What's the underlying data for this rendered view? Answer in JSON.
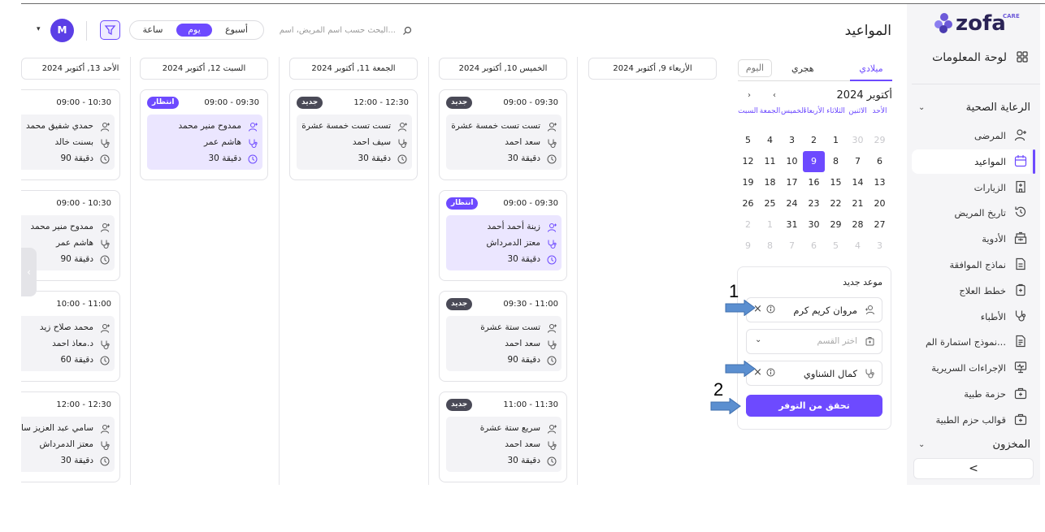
{
  "app": {
    "logo_text": "zofa",
    "logo_sub": "CARE",
    "dashboard_label": "لوحة المعلومات"
  },
  "sidebar": {
    "section_health": "الرعاية الصحية",
    "items": [
      {
        "label": "المرضى",
        "icon": "user-plus-icon"
      },
      {
        "label": "المواعيد",
        "icon": "calendar-icon",
        "active": true
      },
      {
        "label": "الزيارات",
        "icon": "hospital-icon"
      },
      {
        "label": "تاريخ المريض",
        "icon": "history-icon"
      },
      {
        "label": "الأدوية",
        "icon": "pharmacy-icon"
      },
      {
        "label": "نماذج الموافقة",
        "icon": "document-icon"
      },
      {
        "label": "خطط العلاج",
        "icon": "clipboard-icon"
      },
      {
        "label": "الأطباء",
        "icon": "stethoscope-icon"
      },
      {
        "label": "نموذج استمارة الم...",
        "icon": "form-icon"
      },
      {
        "label": "الإجراءات السريرية",
        "icon": "monitor-icon"
      },
      {
        "label": "حزمة طبية",
        "icon": "medkit-icon"
      },
      {
        "label": "قوالب حزم الطبية",
        "icon": "medkit-icon"
      }
    ],
    "section_store": "المخزون",
    "collapse_glyph": "<"
  },
  "header": {
    "title": "المواعيد",
    "search_placeholder": "البحث حسب اسم المريض، اسم...",
    "view_week": "أسبوع",
    "view_day": "يوم",
    "view_hour": "ساعة",
    "view_selected": "يوم",
    "avatar_initial": "M"
  },
  "calendar": {
    "tabs": {
      "gregorian": "ميلادي",
      "hijri": "هجري",
      "today": "اليوم"
    },
    "month_label": "أكتوبر 2024",
    "weekdays": [
      "الأحد",
      "الاثنين",
      "الثلاثاء",
      "الأربعاء",
      "الخميس",
      "الجمعة",
      "السبت"
    ],
    "weeks": [
      [
        {
          "d": "29",
          "dim": true
        },
        {
          "d": "30",
          "dim": true
        },
        {
          "d": "1"
        },
        {
          "d": "2"
        },
        {
          "d": "3"
        },
        {
          "d": "4"
        },
        {
          "d": "5"
        }
      ],
      [
        {
          "d": "6"
        },
        {
          "d": "7"
        },
        {
          "d": "8"
        },
        {
          "d": "9",
          "sel": true
        },
        {
          "d": "10"
        },
        {
          "d": "11"
        },
        {
          "d": "12"
        }
      ],
      [
        {
          "d": "13"
        },
        {
          "d": "14"
        },
        {
          "d": "15"
        },
        {
          "d": "16"
        },
        {
          "d": "17"
        },
        {
          "d": "18"
        },
        {
          "d": "19"
        }
      ],
      [
        {
          "d": "20"
        },
        {
          "d": "21"
        },
        {
          "d": "22"
        },
        {
          "d": "23"
        },
        {
          "d": "24"
        },
        {
          "d": "25"
        },
        {
          "d": "26"
        }
      ],
      [
        {
          "d": "27"
        },
        {
          "d": "28"
        },
        {
          "d": "29"
        },
        {
          "d": "30"
        },
        {
          "d": "31"
        },
        {
          "d": "1",
          "dim": true
        },
        {
          "d": "2",
          "dim": true
        }
      ],
      [
        {
          "d": "3",
          "dim": true
        },
        {
          "d": "4",
          "dim": true
        },
        {
          "d": "5",
          "dim": true
        },
        {
          "d": "6",
          "dim": true
        },
        {
          "d": "7",
          "dim": true
        },
        {
          "d": "8",
          "dim": true
        },
        {
          "d": "9",
          "dim": true
        }
      ]
    ]
  },
  "booking": {
    "title": "موعد جديد",
    "patient": "مروان كريم كرم",
    "department_placeholder": "اختر القسم",
    "doctor": "كمال الشناوي",
    "check_button": "تحقق من التوفر",
    "annotation_1": "1",
    "annotation_2": "2"
  },
  "columns": [
    {
      "header": "الأربعاء 9, أكتوبر 2024",
      "appointments": []
    },
    {
      "header": "الخميس 10, أكتوبر 2024",
      "appointments": [
        {
          "time": "09:00 - 09:30",
          "badge": "جديد",
          "status": "new",
          "patient": "تست تست خمسة عشرة",
          "doctor": "سعد احمد",
          "duration": "30 دقيقة"
        },
        {
          "time": "09:00 - 09:30",
          "badge": "انتظار",
          "status": "wait",
          "patient": "زينة أحمد أحمد",
          "doctor": "معتز الدمرداش",
          "duration": "30 دقيقة"
        },
        {
          "time": "09:30 - 11:00",
          "badge": "جديد",
          "status": "new",
          "patient": "تست ستة عشرة",
          "doctor": "سعد احمد",
          "duration": "90 دقيقة"
        },
        {
          "time": "11:00 - 11:30",
          "badge": "جديد",
          "status": "new",
          "patient": "سريع ستة عشرة",
          "doctor": "سعد احمد",
          "duration": "30 دقيقة"
        }
      ]
    },
    {
      "header": "الجمعة 11, أكتوبر 2024",
      "appointments": [
        {
          "time": "12:00 - 12:30",
          "badge": "جديد",
          "status": "new",
          "patient": "تست تست خمسة عشرة",
          "doctor": "سيف احمد",
          "duration": "30 دقيقة"
        }
      ]
    },
    {
      "header": "السبت 12, أكتوبر 2024",
      "appointments": [
        {
          "time": "09:00 - 09:30",
          "badge": "انتظار",
          "status": "wait",
          "patient": "ممدوح منير محمد",
          "doctor": "هاشم عمر",
          "duration": "30 دقيقة"
        }
      ]
    },
    {
      "header": "الأحد 13, أكتوبر 2024",
      "appointments": [
        {
          "time": "09:00 - 10:30",
          "patient": "حمدي شفيق محمد",
          "doctor": "بسنت خالد",
          "duration": "90 دقيقة"
        },
        {
          "time": "09:00 - 10:30",
          "patient": "ممدوح منير محمد",
          "doctor": "هاشم عمر",
          "duration": "90 دقيقة"
        },
        {
          "time": "10:00 - 11:00",
          "patient": "محمد صلاح زيد",
          "doctor": "د.معاذ احمد",
          "duration": "60 دقيقة"
        },
        {
          "time": "12:00 - 12:30",
          "patient": "سامي عبد العزيز سامي",
          "doctor": "معتز الدمرداش",
          "duration": "30 دقيقة"
        }
      ]
    }
  ],
  "colors": {
    "accent": "#6d4aff",
    "badge_new": "#4a4a57",
    "wait_bg": "#ebe6ff",
    "arrow": "#5b8fd0"
  }
}
